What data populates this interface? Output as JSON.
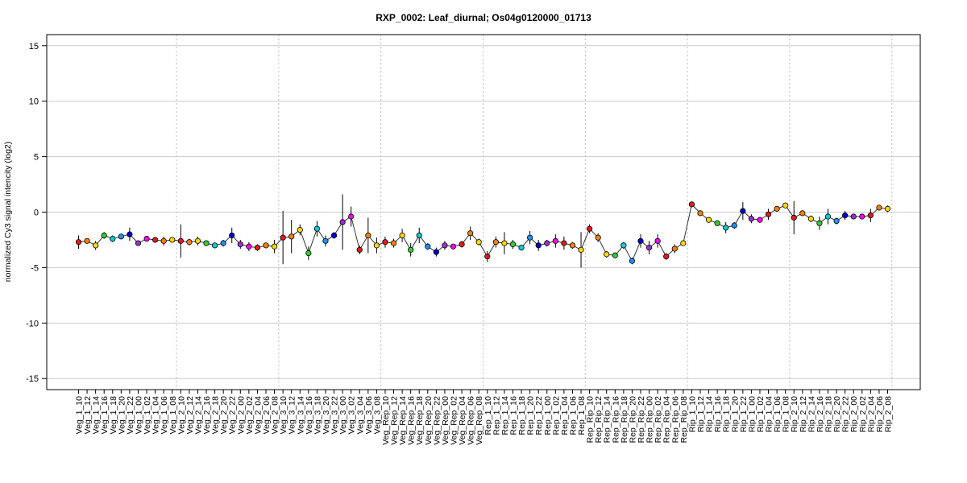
{
  "chart_data": {
    "type": "line",
    "title": "RXP_0002: Leaf_diurnal; Os04g0120000_01713",
    "ylabel": "normalized Cy3 signal intencity (log2)",
    "xlabel": "",
    "ylim": [
      -16,
      16
    ],
    "yticks": [
      -15,
      -10,
      -5,
      0,
      5,
      10,
      15
    ],
    "grid": true,
    "point_colors": [
      "#E41A1C",
      "#FF7F00",
      "#FFD700",
      "#32CD32",
      "#00CED1",
      "#1E90FF",
      "#0000CD",
      "#9932CC",
      "#FF00FF"
    ],
    "group_separators_after_index": [
      11,
      23,
      35,
      47,
      59,
      71,
      83,
      95
    ],
    "categories": [
      "Veg_1_10",
      "Veg_1_12",
      "Veg_1_14",
      "Veg_1_16",
      "Veg_1_18",
      "Veg_1_20",
      "Veg_1_22",
      "Veg_1_00",
      "Veg_1_02",
      "Veg_1_04",
      "Veg_1_06",
      "Veg_1_08",
      "Veg_2_10",
      "Veg_2_12",
      "Veg_2_14",
      "Veg_2_16",
      "Veg_2_18",
      "Veg_2_20",
      "Veg_2_22",
      "Veg_2_00",
      "Veg_2_02",
      "Veg_2_04",
      "Veg_2_06",
      "Veg_2_08",
      "Veg_3_10",
      "Veg_3_12",
      "Veg_3_14",
      "Veg_3_16",
      "Veg_3_18",
      "Veg_3_20",
      "Veg_3_22",
      "Veg_3_00",
      "Veg_3_02",
      "Veg_3_04",
      "Veg_3_06",
      "Veg_3_08",
      "Veg_Rep_10",
      "Veg_Rep_12",
      "Veg_Rep_14",
      "Veg_Rep_16",
      "Veg_Rep_18",
      "Veg_Rep_20",
      "Veg_Rep_22",
      "Veg_Rep_00",
      "Veg_Rep_02",
      "Veg_Rep_04",
      "Veg_Rep_06",
      "Veg_Rep_08",
      "Rep_1_10",
      "Rep_1_12",
      "Rep_1_14",
      "Rep_1_16",
      "Rep_1_18",
      "Rep_1_20",
      "Rep_1_22",
      "Rep_1_00",
      "Rep_1_02",
      "Rep_1_04",
      "Rep_1_06",
      "Rep_1_08",
      "Rep_Rip_10",
      "Rep_Rip_12",
      "Rep_Rip_14",
      "Rep_Rip_16",
      "Rep_Rip_18",
      "Rep_Rip_20",
      "Rep_Rip_22",
      "Rep_Rip_00",
      "Rep_Rip_02",
      "Rep_Rip_04",
      "Rep_Rip_06",
      "Rep_Rip_08",
      "Rip_1_10",
      "Rip_1_12",
      "Rip_1_14",
      "Rip_1_16",
      "Rip_1_18",
      "Rip_1_20",
      "Rip_1_22",
      "Rip_1_00",
      "Rip_1_02",
      "Rip_1_04",
      "Rip_1_06",
      "Rip_1_08",
      "Rip_2_10",
      "Rip_2_12",
      "Rip_2_14",
      "Rip_2_16",
      "Rip_2_18",
      "Rip_2_20",
      "Rip_2_22",
      "Rip_2_00",
      "Rip_2_02",
      "Rip_2_04",
      "Rip_2_06",
      "Rip_2_08"
    ],
    "values": [
      -2.7,
      -2.6,
      -3.0,
      -2.1,
      -2.4,
      -2.2,
      -2.0,
      -2.8,
      -2.4,
      -2.5,
      -2.6,
      -2.5,
      -2.6,
      -2.7,
      -2.6,
      -2.8,
      -3.0,
      -2.8,
      -2.1,
      -2.9,
      -3.1,
      -3.2,
      -3.0,
      -3.1,
      -2.3,
      -2.2,
      -1.6,
      -3.7,
      -1.5,
      -2.6,
      -2.1,
      -0.9,
      -0.4,
      -3.4,
      -2.1,
      -3.0,
      -2.7,
      -2.8,
      -2.1,
      -3.4,
      -2.1,
      -3.1,
      -3.6,
      -3.0,
      -3.1,
      -2.9,
      -1.9,
      -2.7,
      -4.0,
      -2.7,
      -2.8,
      -2.9,
      -3.2,
      -2.3,
      -3.0,
      -2.8,
      -2.6,
      -2.8,
      -3.0,
      -3.4,
      -1.5,
      -2.3,
      -3.8,
      -3.9,
      -3.0,
      -4.4,
      -2.6,
      -3.2,
      -2.6,
      -4.0,
      -3.3,
      -2.8,
      0.7,
      -0.1,
      -0.7,
      -1.0,
      -1.4,
      -1.2,
      0.1,
      -0.6,
      -0.7,
      -0.2,
      0.3,
      0.6,
      -0.5,
      -0.1,
      -0.6,
      -1.0,
      -0.4,
      -0.8,
      -0.3,
      -0.4,
      -0.4,
      -0.3,
      0.4,
      0.3
    ],
    "errors": [
      0.6,
      0.2,
      0.4,
      0.3,
      0.3,
      0.2,
      0.6,
      0.2,
      0.2,
      0.2,
      0.4,
      0.2,
      1.5,
      0.3,
      0.4,
      0.2,
      0.2,
      0.3,
      0.7,
      0.4,
      0.4,
      0.3,
      0.2,
      0.6,
      2.4,
      1.5,
      0.5,
      0.6,
      0.7,
      0.5,
      0.3,
      2.5,
      0.9,
      0.4,
      1.6,
      0.7,
      0.5,
      0.4,
      0.6,
      0.6,
      0.7,
      0.3,
      0.4,
      0.4,
      0.2,
      0.3,
      0.6,
      0.3,
      0.5,
      0.5,
      1.0,
      0.4,
      0.2,
      0.6,
      0.5,
      0.3,
      0.6,
      0.6,
      0.3,
      1.6,
      0.4,
      0.4,
      0.3,
      0.2,
      0.3,
      0.3,
      0.6,
      0.6,
      0.6,
      0.3,
      0.4,
      0.2,
      0.2,
      0.2,
      0.2,
      0.2,
      0.5,
      0.3,
      0.8,
      0.4,
      0.2,
      0.5,
      0.2,
      0.2,
      1.5,
      0.2,
      0.3,
      0.6,
      0.7,
      0.3,
      0.4,
      0.2,
      0.2,
      0.6,
      0.2,
      0.3
    ]
  }
}
